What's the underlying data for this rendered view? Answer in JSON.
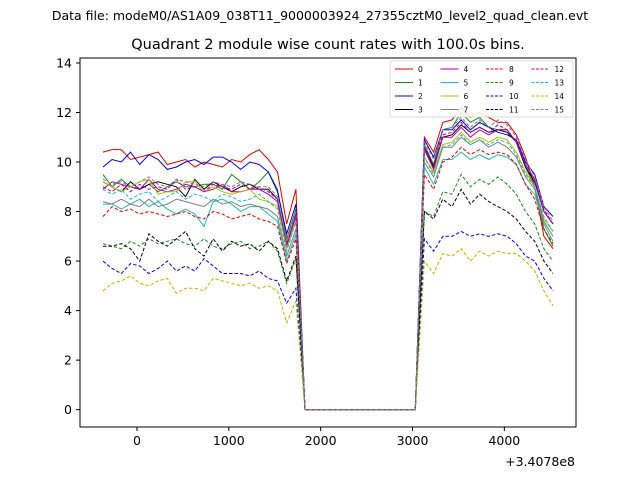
{
  "figure": {
    "suptitle": "Data file: modeM0/AS1A09_038T11_9000003924_27355cztM0_level2_quad_clean.evt"
  },
  "chart_data": {
    "type": "line",
    "title": "Quadrant 2 module wise count rates with 100.0s bins.",
    "xlabel": "",
    "ylabel": "",
    "x_offset_label": "+3.4078e8",
    "xlim": [
      -620,
      4780
    ],
    "ylim": [
      -0.7,
      14.2
    ],
    "x_ticks": [
      0,
      1000,
      2000,
      3000,
      4000
    ],
    "x_tick_labels": [
      "0",
      "1000",
      "2000",
      "3000",
      "4000"
    ],
    "y_ticks": [
      0,
      2,
      4,
      6,
      8,
      10,
      12,
      14
    ],
    "y_tick_labels": [
      "0",
      "2",
      "4",
      "6",
      "8",
      "10",
      "12",
      "14"
    ],
    "grid": false,
    "legend_position": "top-right",
    "legend_columns": 4,
    "x": [
      -370,
      -270,
      -170,
      -70,
      30,
      130,
      230,
      330,
      430,
      530,
      630,
      730,
      830,
      930,
      1030,
      1130,
      1230,
      1330,
      1430,
      1530,
      1630,
      1730,
      1830,
      1930,
      2130,
      2230,
      2330,
      2430,
      2530,
      2630,
      2730,
      2830,
      2930,
      3030,
      3130,
      3230,
      3330,
      3430,
      3530,
      3630,
      3730,
      3830,
      3930,
      4030,
      4130,
      4230,
      4330,
      4430,
      4530
    ],
    "series": [
      {
        "name": "0",
        "color": "#e00000",
        "dash": "solid",
        "values": [
          10.4,
          10.5,
          10.5,
          10.1,
          10.2,
          10.3,
          10.4,
          9.9,
          10.0,
          10.1,
          9.8,
          10.0,
          9.9,
          9.8,
          10.1,
          10.0,
          10.3,
          10.5,
          10.1,
          9.6,
          7.5,
          8.9,
          0,
          0,
          0,
          0,
          0,
          0,
          0,
          0,
          0,
          0,
          0,
          0,
          11.0,
          10.4,
          11.6,
          11.7,
          12.2,
          11.8,
          12.0,
          11.8,
          11.6,
          11.6,
          11.1,
          10.2,
          9.0,
          7.0,
          6.5
        ]
      },
      {
        "name": "1",
        "color": "#1a8a1a",
        "dash": "solid",
        "values": [
          9.5,
          9.0,
          9.3,
          9.0,
          8.9,
          9.1,
          8.8,
          9.0,
          9.2,
          9.0,
          9.0,
          9.1,
          9.1,
          8.9,
          9.5,
          9.2,
          8.9,
          9.2,
          9.6,
          8.9,
          6.9,
          8.1,
          0,
          0,
          0,
          0,
          0,
          0,
          0,
          0,
          0,
          0,
          0,
          0,
          10.7,
          9.9,
          11.3,
          11.4,
          12.0,
          11.6,
          11.8,
          11.4,
          11.3,
          11.3,
          10.8,
          9.8,
          9.0,
          7.3,
          6.6
        ]
      },
      {
        "name": "2",
        "color": "#0000e0",
        "dash": "solid",
        "values": [
          9.8,
          10.1,
          10.0,
          10.4,
          9.9,
          10.3,
          10.1,
          9.7,
          9.8,
          10.0,
          10.1,
          9.9,
          10.2,
          10.2,
          10.0,
          9.7,
          10.0,
          9.9,
          9.6,
          8.8,
          7.1,
          8.3,
          0,
          0,
          0,
          0,
          0,
          0,
          0,
          0,
          0,
          0,
          0,
          0,
          10.9,
          10.2,
          11.3,
          11.3,
          11.7,
          11.3,
          11.6,
          11.4,
          11.2,
          11.1,
          10.9,
          10.0,
          9.5,
          8.2,
          7.8
        ]
      },
      {
        "name": "3",
        "color": "#000000",
        "dash": "solid",
        "values": [
          9.2,
          9.0,
          8.8,
          9.2,
          8.9,
          9.1,
          9.2,
          9.1,
          9.0,
          8.6,
          9.3,
          8.9,
          9.2,
          9.0,
          8.8,
          9.0,
          9.1,
          8.9,
          8.9,
          8.5,
          6.6,
          7.9,
          0,
          0,
          0,
          0,
          0,
          0,
          0,
          0,
          0,
          0,
          0,
          0,
          10.6,
          9.8,
          11.0,
          11.1,
          11.5,
          11.2,
          11.4,
          11.2,
          11.3,
          11.2,
          10.8,
          9.8,
          9.2,
          8.0,
          7.5
        ]
      },
      {
        "name": "4",
        "color": "#b000b0",
        "dash": "solid",
        "values": [
          8.9,
          9.2,
          9.1,
          9.0,
          8.9,
          9.3,
          8.9,
          8.8,
          8.9,
          9.1,
          9.0,
          8.8,
          8.9,
          9.1,
          8.8,
          8.8,
          8.9,
          8.9,
          8.7,
          8.4,
          6.6,
          7.8,
          0,
          0,
          0,
          0,
          0,
          0,
          0,
          0,
          0,
          0,
          0,
          0,
          10.5,
          9.7,
          11.0,
          11.0,
          11.4,
          11.0,
          11.3,
          11.1,
          11.3,
          11.3,
          10.8,
          9.9,
          9.3,
          8.0,
          7.5
        ]
      },
      {
        "name": "5",
        "color": "#20b8b8",
        "dash": "solid",
        "values": [
          8.3,
          8.3,
          8.1,
          8.3,
          8.5,
          8.2,
          8.4,
          8.1,
          7.9,
          8.1,
          7.9,
          7.4,
          8.4,
          8.5,
          8.3,
          8.0,
          8.2,
          8.2,
          7.9,
          7.6,
          6.0,
          7.1,
          0,
          0,
          0,
          0,
          0,
          0,
          0,
          0,
          0,
          0,
          0,
          0,
          9.8,
          9.1,
          10.1,
          10.1,
          10.4,
          10.1,
          10.3,
          10.1,
          10.3,
          10.2,
          9.9,
          9.1,
          8.7,
          7.5,
          6.8
        ]
      },
      {
        "name": "6",
        "color": "#b8b800",
        "dash": "solid",
        "values": [
          9.2,
          9.0,
          8.8,
          9.0,
          9.2,
          9.3,
          8.7,
          8.8,
          8.8,
          9.2,
          9.2,
          8.8,
          9.0,
          8.8,
          8.7,
          8.8,
          8.9,
          8.5,
          8.4,
          8.2,
          6.5,
          7.6,
          0,
          0,
          0,
          0,
          0,
          0,
          0,
          0,
          0,
          0,
          0,
          0,
          10.2,
          9.6,
          10.7,
          10.8,
          11.2,
          10.8,
          11.0,
          10.8,
          11.0,
          10.9,
          10.4,
          9.6,
          9.0,
          7.7,
          7.2
        ]
      },
      {
        "name": "7",
        "color": "#7f7f7f",
        "dash": "solid",
        "values": [
          8.4,
          8.3,
          8.5,
          8.3,
          8.2,
          8.5,
          8.2,
          8.3,
          8.5,
          8.4,
          8.3,
          8.2,
          8.5,
          8.3,
          8.4,
          8.2,
          8.3,
          8.2,
          8.1,
          7.8,
          6.2,
          7.3,
          0,
          0,
          0,
          0,
          0,
          0,
          0,
          0,
          0,
          0,
          0,
          0,
          10.0,
          9.4,
          10.6,
          10.6,
          11.0,
          10.7,
          10.9,
          10.6,
          10.8,
          10.6,
          10.2,
          9.4,
          8.9,
          7.6,
          7.0
        ]
      },
      {
        "name": "8",
        "color": "#e00000",
        "dash": "dashed",
        "values": [
          7.8,
          8.2,
          8.0,
          8.1,
          7.9,
          8.0,
          7.9,
          7.8,
          7.9,
          8.0,
          7.8,
          7.7,
          8.0,
          7.9,
          7.7,
          7.8,
          7.9,
          7.7,
          7.6,
          7.4,
          5.9,
          6.9,
          0,
          0,
          0,
          0,
          0,
          0,
          0,
          0,
          0,
          0,
          0,
          0,
          9.5,
          8.9,
          10.0,
          10.2,
          10.6,
          10.3,
          10.5,
          10.3,
          10.4,
          10.3,
          9.9,
          9.1,
          8.5,
          7.3,
          6.7
        ]
      },
      {
        "name": "9",
        "color": "#1a8a1a",
        "dash": "dashed",
        "values": [
          6.7,
          6.6,
          6.5,
          6.8,
          6.6,
          6.9,
          6.7,
          6.8,
          6.9,
          6.7,
          6.6,
          6.9,
          6.6,
          6.5,
          6.7,
          6.8,
          6.5,
          6.6,
          6.8,
          6.4,
          5.1,
          6.1,
          0,
          0,
          0,
          0,
          0,
          0,
          0,
          0,
          0,
          0,
          0,
          0,
          8.0,
          7.8,
          8.8,
          8.7,
          9.5,
          9.0,
          9.3,
          9.1,
          9.4,
          9.1,
          8.7,
          8.0,
          7.5,
          6.5,
          6.0
        ]
      },
      {
        "name": "10",
        "color": "#0000e0",
        "dash": "dashed",
        "values": [
          6.0,
          5.7,
          5.5,
          5.9,
          5.8,
          5.5,
          5.7,
          6.0,
          5.6,
          5.8,
          5.6,
          6.1,
          5.8,
          5.5,
          5.5,
          5.5,
          5.4,
          5.6,
          5.3,
          5.2,
          4.3,
          4.9,
          0,
          0,
          0,
          0,
          0,
          0,
          0,
          0,
          0,
          0,
          0,
          0,
          6.9,
          6.4,
          7.0,
          7.0,
          7.2,
          7.0,
          7.1,
          7.0,
          7.1,
          7.0,
          6.7,
          6.2,
          6.0,
          5.3,
          4.8
        ]
      },
      {
        "name": "11",
        "color": "#000000",
        "dash": "dashed",
        "values": [
          6.6,
          6.6,
          6.7,
          6.5,
          6.0,
          7.1,
          6.8,
          6.6,
          6.9,
          7.2,
          6.5,
          6.2,
          6.9,
          6.4,
          6.8,
          6.6,
          6.7,
          6.4,
          6.8,
          6.5,
          5.2,
          6.2,
          0,
          0,
          0,
          0,
          0,
          0,
          0,
          0,
          0,
          0,
          0,
          0,
          8.0,
          7.7,
          8.5,
          8.2,
          8.9,
          8.3,
          8.7,
          8.4,
          8.2,
          8.0,
          7.7,
          7.2,
          6.8,
          6.0,
          5.5
        ]
      },
      {
        "name": "12",
        "color": "#b000b0",
        "dash": "dashed",
        "values": [
          9.0,
          8.8,
          9.1,
          8.8,
          9.1,
          8.9,
          9.0,
          8.9,
          9.3,
          8.9,
          9.0,
          8.8,
          9.1,
          9.0,
          8.9,
          9.1,
          8.9,
          9.0,
          8.8,
          8.5,
          6.7,
          7.9,
          0,
          0,
          0,
          0,
          0,
          0,
          0,
          0,
          0,
          0,
          0,
          0,
          10.6,
          9.9,
          11.1,
          11.2,
          11.6,
          11.2,
          11.4,
          11.2,
          11.5,
          11.3,
          10.8,
          9.9,
          9.3,
          8.1,
          7.5
        ]
      },
      {
        "name": "13",
        "color": "#20b8b8",
        "dash": "dashed",
        "values": [
          8.9,
          8.7,
          8.9,
          8.5,
          8.7,
          8.8,
          8.4,
          8.6,
          8.8,
          8.5,
          8.7,
          8.6,
          8.4,
          8.7,
          8.6,
          8.4,
          8.5,
          8.7,
          8.4,
          8.1,
          6.4,
          7.6,
          0,
          0,
          0,
          0,
          0,
          0,
          0,
          0,
          0,
          0,
          0,
          0,
          10.2,
          9.5,
          10.6,
          10.7,
          11.1,
          10.7,
          10.9,
          10.7,
          10.9,
          10.8,
          10.3,
          9.5,
          9.0,
          7.8,
          7.2
        ]
      },
      {
        "name": "14",
        "color": "#b8b800",
        "dash": "dashed",
        "values": [
          4.8,
          5.1,
          5.2,
          5.4,
          5.1,
          5.0,
          5.2,
          5.3,
          4.7,
          4.9,
          4.9,
          4.8,
          5.3,
          5.2,
          5.1,
          5.0,
          5.1,
          4.9,
          5.0,
          4.8,
          3.5,
          4.4,
          0,
          0,
          0,
          0,
          0,
          0,
          0,
          0,
          0,
          0,
          0,
          0,
          6.0,
          5.5,
          6.3,
          6.2,
          6.5,
          6.0,
          6.4,
          6.2,
          6.4,
          6.3,
          6.3,
          6.0,
          5.6,
          4.8,
          4.2
        ]
      },
      {
        "name": "15",
        "color": "#7f7f7f",
        "dash": "dashed",
        "values": [
          9.3,
          9.1,
          9.2,
          9.0,
          9.2,
          9.4,
          9.1,
          9.0,
          9.3,
          9.2,
          9.1,
          9.0,
          9.2,
          9.1,
          9.0,
          9.2,
          9.1,
          9.0,
          9.0,
          8.6,
          6.8,
          8.0,
          0,
          0,
          0,
          0,
          0,
          0,
          0,
          0,
          0,
          0,
          0,
          0,
          10.8,
          10.1,
          11.3,
          11.4,
          11.8,
          11.4,
          11.7,
          11.4,
          11.7,
          11.5,
          11.0,
          10.1,
          9.4,
          8.2,
          7.6
        ]
      }
    ]
  }
}
